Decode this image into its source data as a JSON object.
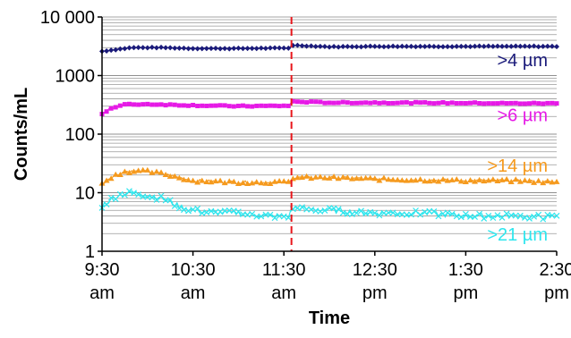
{
  "chart_data": {
    "type": "line",
    "title": "",
    "xlabel": "Time",
    "ylabel": "Counts/mL",
    "yscale": "log",
    "ylim": [
      1,
      10000
    ],
    "xlim": [
      "9:30",
      "14:30"
    ],
    "grid": "horizontal minor log gridlines",
    "y_ticks": [
      {
        "value": 1,
        "label": "1"
      },
      {
        "value": 10,
        "label": "10"
      },
      {
        "value": 100,
        "label": "100"
      },
      {
        "value": 1000,
        "label": "1000"
      },
      {
        "value": 10000,
        "label": "10 000"
      }
    ],
    "x_ticks": [
      {
        "time": "9:30",
        "label1": "9:30",
        "label2": "am"
      },
      {
        "time": "10:30",
        "label1": "10:30",
        "label2": "am"
      },
      {
        "time": "11:30",
        "label1": "11:30",
        "label2": "am"
      },
      {
        "time": "12:30",
        "label1": "12:30",
        "label2": "pm"
      },
      {
        "time": "13:30",
        "label1": "1:30",
        "label2": "pm"
      },
      {
        "time": "14:30",
        "label1": "2:30",
        "label2": "pm"
      }
    ],
    "event_line": {
      "time": "11:35",
      "color": "#e8161b",
      "style": "dashed"
    },
    "series": [
      {
        "name": ">4 µm",
        "color": "#1a1a7a",
        "marker": "diamond",
        "points": [
          [
            "9:30",
            2600
          ],
          [
            "9:40",
            2800
          ],
          [
            "9:50",
            3000
          ],
          [
            "10:10",
            3000
          ],
          [
            "10:30",
            2900
          ],
          [
            "11:00",
            2900
          ],
          [
            "11:34",
            2950
          ],
          [
            "11:35",
            3300
          ],
          [
            "12:00",
            3100
          ],
          [
            "12:30",
            3150
          ],
          [
            "13:30",
            3150
          ],
          [
            "14:00",
            3150
          ],
          [
            "14:30",
            3150
          ]
        ]
      },
      {
        "name": ">6 µm",
        "color": "#e619e6",
        "marker": "square",
        "points": [
          [
            "9:30",
            220
          ],
          [
            "9:35",
            270
          ],
          [
            "9:45",
            320
          ],
          [
            "10:00",
            325
          ],
          [
            "10:30",
            310
          ],
          [
            "11:00",
            300
          ],
          [
            "11:34",
            305
          ],
          [
            "11:35",
            360
          ],
          [
            "12:00",
            345
          ],
          [
            "12:30",
            345
          ],
          [
            "13:30",
            340
          ],
          [
            "14:00",
            335
          ],
          [
            "14:30",
            335
          ]
        ]
      },
      {
        "name": ">14 µm",
        "color": "#f59a1e",
        "marker": "triangle",
        "points": [
          [
            "9:30",
            14
          ],
          [
            "9:35",
            18
          ],
          [
            "9:45",
            23
          ],
          [
            "10:00",
            23
          ],
          [
            "10:10",
            21
          ],
          [
            "10:30",
            16
          ],
          [
            "11:00",
            15
          ],
          [
            "11:34",
            15
          ],
          [
            "11:35",
            18
          ],
          [
            "12:00",
            18
          ],
          [
            "12:30",
            17
          ],
          [
            "13:30",
            16
          ],
          [
            "14:00",
            16
          ],
          [
            "14:30",
            15
          ]
        ]
      },
      {
        "name": ">21 µm",
        "color": "#2ee6ee",
        "marker": "x",
        "points": [
          [
            "9:30",
            6
          ],
          [
            "9:40",
            9
          ],
          [
            "9:50",
            10
          ],
          [
            "10:00",
            9
          ],
          [
            "10:10",
            8
          ],
          [
            "10:20",
            6
          ],
          [
            "10:30",
            5
          ],
          [
            "10:45",
            4.5
          ],
          [
            "11:00",
            4.5
          ],
          [
            "11:20",
            4
          ],
          [
            "11:34",
            4
          ],
          [
            "11:35",
            5.5
          ],
          [
            "12:00",
            5
          ],
          [
            "12:30",
            4.5
          ],
          [
            "13:00",
            4.5
          ],
          [
            "13:30",
            4
          ],
          [
            "14:00",
            4
          ],
          [
            "14:30",
            3.8
          ]
        ]
      }
    ]
  }
}
